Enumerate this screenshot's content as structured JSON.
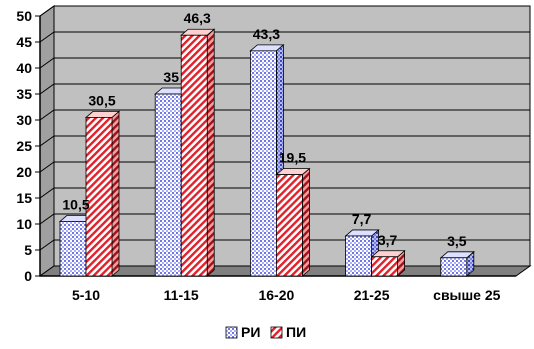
{
  "chart_data": {
    "type": "bar",
    "categories": [
      "5-10",
      "11-15",
      "16-20",
      "21-25",
      "свыше 25"
    ],
    "series": [
      {
        "name": "РИ",
        "values": [
          10.5,
          35,
          43.3,
          7.7,
          3.5
        ],
        "labels": [
          "10,5",
          "35",
          "43,3",
          "7,7",
          "3,5"
        ],
        "color": "#c8ccff"
      },
      {
        "name": "ПИ",
        "values": [
          30.5,
          46.3,
          19.5,
          3.7,
          null
        ],
        "labels": [
          "30,5",
          "46,3",
          "19,5",
          "3,7",
          ""
        ],
        "color": "#ff9a9a"
      }
    ],
    "yticks": [
      "0",
      "5",
      "10",
      "15",
      "20",
      "25",
      "30",
      "35",
      "40",
      "45",
      "50"
    ],
    "ylim": [
      0,
      50
    ],
    "grid": true,
    "legend_position": "bottom",
    "wall_color": "#c0c0c0",
    "floor_color": "#808080"
  }
}
